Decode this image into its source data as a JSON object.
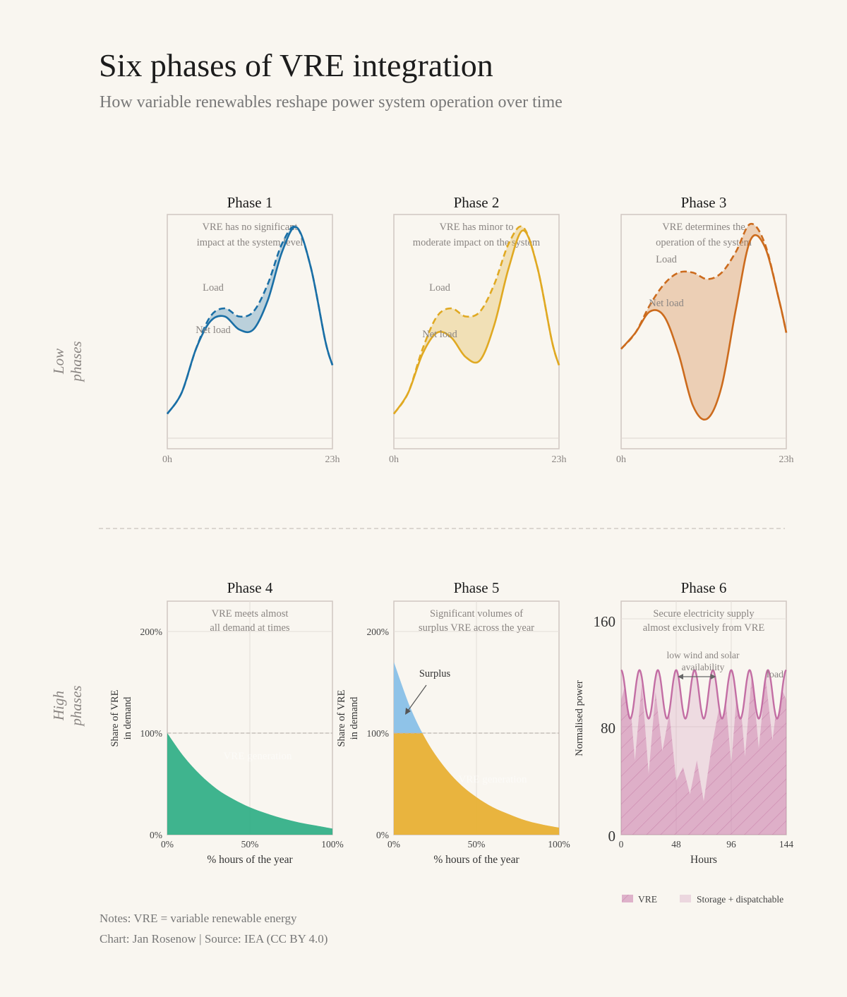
{
  "title": "Six phases of VRE integration",
  "subtitle": "How variable renewables reshape power system operation over time",
  "row_labels": {
    "low": [
      "Low",
      "phases"
    ],
    "high": [
      "High",
      "phases"
    ]
  },
  "notes": {
    "line1": "Notes: VRE = variable renewable energy",
    "line2": "Chart: Jan Rosenow  |  Source: IEA (CC BY 4.0)"
  },
  "colors": {
    "phase1": "#1a6fa6",
    "phase2": "#e0a922",
    "phase3": "#cc6b1d",
    "phase4": "#2fae86",
    "phase5": "#e8b034",
    "surplus": "#8fc3e8",
    "phase6": "#c97aab",
    "frame": "#cfc6c1",
    "muted": "#8a8582"
  },
  "chart_data": [
    {
      "type": "line",
      "title": "Phase 1",
      "annotation": [
        "VRE has no significant",
        "impact at the system level"
      ],
      "series_labels": {
        "load": "Load",
        "net": "Net load"
      },
      "x_ticks": [
        "0h",
        "23h"
      ],
      "x": [
        0,
        2,
        4,
        6,
        8,
        10,
        12,
        14,
        16,
        18,
        20,
        22,
        23
      ],
      "load": [
        5,
        18,
        45,
        65,
        70,
        65,
        68,
        85,
        110,
        120,
        95,
        50,
        35
      ],
      "net_load": [
        5,
        18,
        45,
        62,
        65,
        57,
        57,
        75,
        105,
        120,
        95,
        50,
        35
      ]
    },
    {
      "type": "line",
      "title": "Phase 2",
      "annotation": [
        "VRE has minor to",
        "moderate impact on the system"
      ],
      "series_labels": {
        "load": "Load",
        "net": "Net load"
      },
      "x_ticks": [
        "0h",
        "23h"
      ],
      "x": [
        0,
        2,
        4,
        6,
        8,
        10,
        12,
        14,
        16,
        18,
        20,
        22,
        23
      ],
      "load": [
        5,
        18,
        45,
        65,
        70,
        65,
        68,
        85,
        110,
        120,
        95,
        50,
        35
      ],
      "net_load": [
        5,
        18,
        42,
        55,
        52,
        40,
        38,
        60,
        95,
        118,
        95,
        50,
        35
      ]
    },
    {
      "type": "line",
      "title": "Phase 3",
      "annotation": [
        "VRE determines the",
        "operation of the system"
      ],
      "series_labels": {
        "load": "Load",
        "net": "Net load"
      },
      "x_ticks": [
        "0h",
        "23h"
      ],
      "x": [
        0,
        2,
        4,
        6,
        8,
        10,
        12,
        14,
        16,
        18,
        20,
        22,
        23
      ],
      "load": [
        45,
        55,
        72,
        85,
        92,
        92,
        88,
        92,
        105,
        122,
        110,
        75,
        55
      ],
      "net_load": [
        45,
        55,
        68,
        65,
        42,
        10,
        2,
        22,
        70,
        112,
        108,
        75,
        55
      ]
    },
    {
      "type": "area",
      "title": "Phase 4",
      "annotation": [
        "VRE meets almost",
        "all demand at times"
      ],
      "area_label": "VRE generation",
      "xlabel": "% hours of the year",
      "ylabel": [
        "Share of VRE",
        "in demand"
      ],
      "x_ticks": [
        "0%",
        "50%",
        "100%"
      ],
      "y_ticks": [
        "0%",
        "100%",
        "200%"
      ],
      "x": [
        0,
        10,
        20,
        30,
        40,
        50,
        60,
        70,
        80,
        90,
        100
      ],
      "values": [
        100,
        77,
        59,
        45,
        35,
        27,
        21,
        16,
        12,
        9,
        6
      ]
    },
    {
      "type": "area",
      "title": "Phase 5",
      "annotation": [
        "Significant volumes of",
        "surplus VRE across the year"
      ],
      "area_label": "VRE generation",
      "surplus_label": "Surplus",
      "xlabel": "% hours of the year",
      "ylabel": [
        "Share of VRE",
        "in demand"
      ],
      "x_ticks": [
        "0%",
        "50%",
        "100%"
      ],
      "y_ticks": [
        "0%",
        "100%",
        "200%"
      ],
      "x": [
        0,
        10,
        20,
        30,
        40,
        50,
        60,
        70,
        80,
        90,
        100
      ],
      "values": [
        170,
        125,
        92,
        68,
        50,
        37,
        27,
        20,
        14,
        10,
        7
      ]
    },
    {
      "type": "area",
      "title": "Phase 6",
      "annotation": [
        "Secure electricity supply",
        "almost exclusively from VRE"
      ],
      "callout": [
        "low wind and solar",
        "availability"
      ],
      "load_label": "load",
      "xlabel": "Hours",
      "ylabel": "Normalised power",
      "x_ticks": [
        "0",
        "48",
        "96",
        "144"
      ],
      "y_ticks": [
        "0",
        "80",
        "160"
      ],
      "legend": [
        "VRE",
        "Storage + dispatchable"
      ],
      "legend_position": "bottom-right",
      "load": {
        "min": 86,
        "max": 122,
        "cycles": 9
      },
      "vre_x": [
        0,
        6,
        12,
        18,
        24,
        30,
        36,
        42,
        48,
        54,
        60,
        66,
        72,
        78,
        84,
        90,
        96,
        102,
        108,
        114,
        120,
        126,
        132,
        138,
        144
      ],
      "vre_values": [
        100,
        118,
        55,
        112,
        45,
        106,
        62,
        90,
        40,
        50,
        30,
        55,
        25,
        60,
        88,
        112,
        52,
        118,
        58,
        120,
        64,
        116,
        70,
        112,
        100
      ]
    }
  ]
}
